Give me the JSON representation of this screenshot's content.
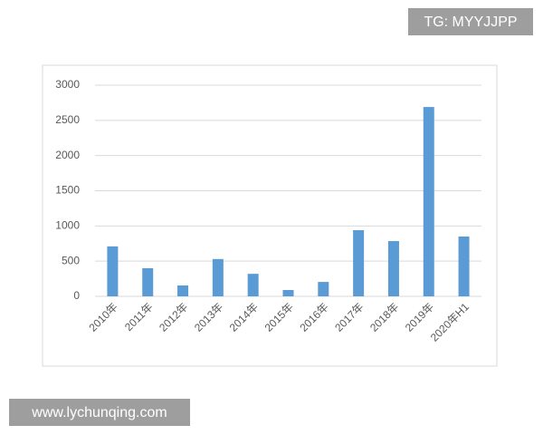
{
  "chart_data": {
    "type": "bar",
    "categories": [
      "2010年",
      "2011年",
      "2012年",
      "2013年",
      "2014年",
      "2015年",
      "2016年",
      "2017年",
      "2018年",
      "2019年",
      "2020年H1"
    ],
    "values": [
      710,
      400,
      155,
      530,
      320,
      90,
      205,
      940,
      785,
      2690,
      850
    ],
    "color": "#5b9bd5",
    "ylim": [
      0,
      3000
    ],
    "yticks": [
      0,
      500,
      1000,
      1500,
      2000,
      2500,
      3000
    ],
    "grid": true
  },
  "watermarks": [
    "TG: MYYJJPP",
    "www.lychunqing.com"
  ]
}
